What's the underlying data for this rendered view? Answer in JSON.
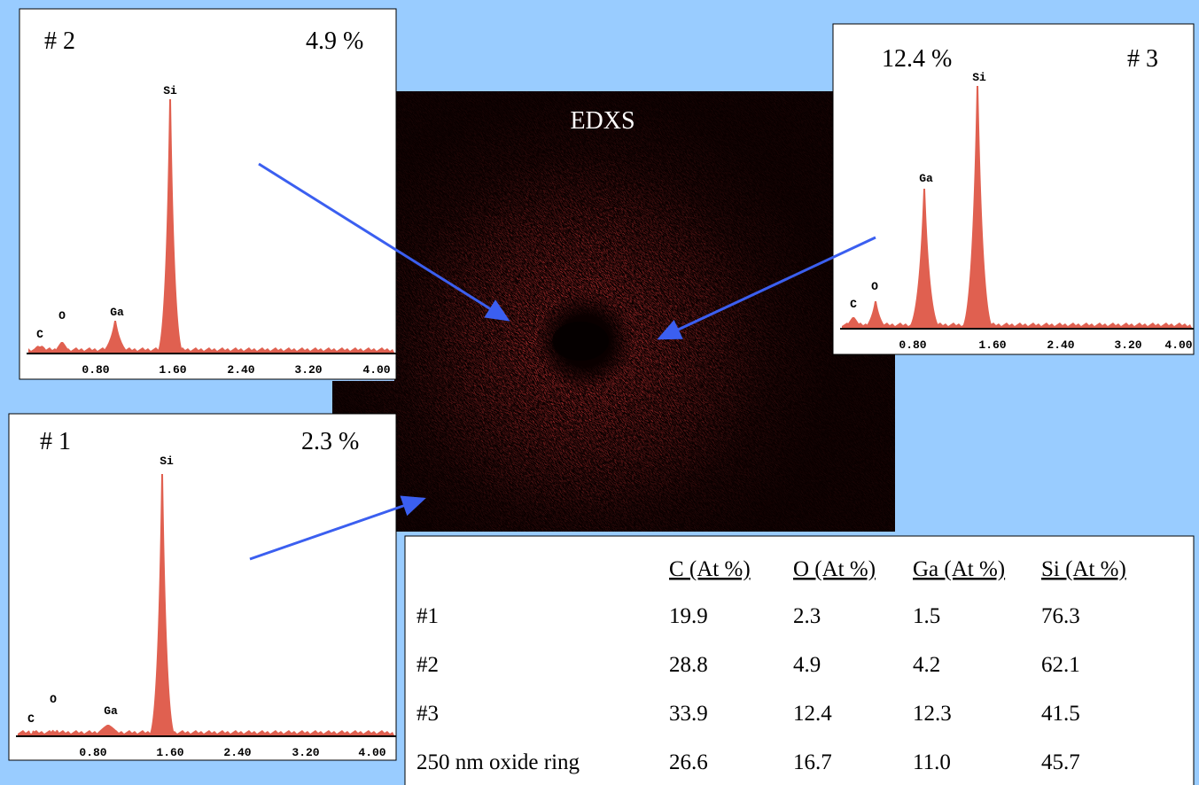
{
  "image_label": "EDXS",
  "spectra": [
    {
      "id": "# 2",
      "percent": "4.9 %",
      "peaks": [
        "Si",
        "Ga",
        "O",
        "C"
      ],
      "xticks": [
        "0.80",
        "1.60",
        "2.40",
        "3.20",
        "4.00"
      ]
    },
    {
      "id": "# 3",
      "percent": "12.4 %",
      "peaks": [
        "Si",
        "Ga",
        "O",
        "C"
      ],
      "xticks": [
        "0.80",
        "1.60",
        "2.40",
        "3.20",
        "4.00"
      ]
    },
    {
      "id": "# 1",
      "percent": "2.3 %",
      "peaks": [
        "Si",
        "Ga",
        "O",
        "C"
      ],
      "xticks": [
        "0.80",
        "1.60",
        "2.40",
        "3.20",
        "4.00"
      ]
    }
  ],
  "table": {
    "header": [
      "C (At %)",
      "O (At %)",
      "Ga (At %)",
      "Si (At %)"
    ],
    "rows": [
      [
        "#1",
        "19.9",
        "2.3",
        "1.5",
        "76.3"
      ],
      [
        "#2",
        "28.8",
        "4.9",
        "4.2",
        "62.1"
      ],
      [
        "#3",
        "33.9",
        "12.4",
        "12.3",
        "41.5"
      ],
      [
        "250 nm oxide ring",
        "26.6",
        "16.7",
        "11.0",
        "45.7"
      ]
    ]
  }
}
